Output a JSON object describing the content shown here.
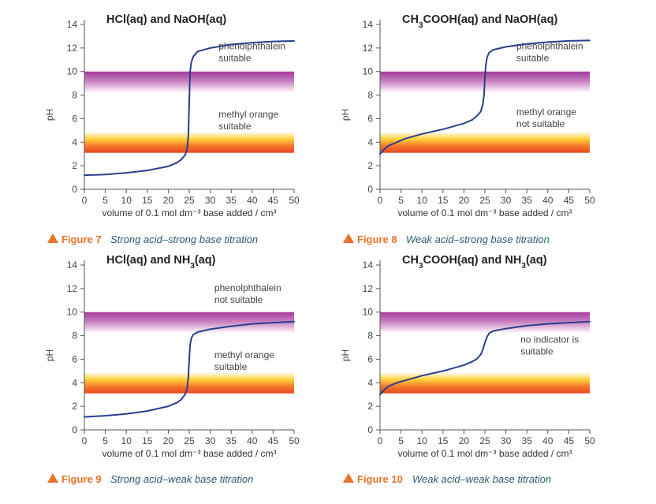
{
  "colors": {
    "curve": "#2b3f8c",
    "phenolphthalein_band": [
      "#a43b9c",
      "#ffffff"
    ],
    "methyl_orange_band": [
      "#ffffff",
      "#ffd23a",
      "#f5722a",
      "#e84a1f"
    ],
    "caption_figure": "#e8732a",
    "caption_text": "#2a5d6a"
  },
  "chart_data": [
    {
      "type": "line",
      "title": "HCl(aq) and NaOH(aq)",
      "title_parts": [
        {
          "t": "HCl(aq) and NaOH(aq)"
        }
      ],
      "xlabel": "volume of 0.1 mol dm⁻³ base added / cm³",
      "ylabel": "pH",
      "xlim": [
        0,
        50
      ],
      "ylim": [
        0,
        14
      ],
      "xticks": [
        0,
        5,
        10,
        15,
        20,
        25,
        30,
        35,
        40,
        45,
        50
      ],
      "yticks": [
        0,
        2,
        4,
        6,
        8,
        10,
        12,
        14
      ],
      "bands": [
        {
          "indicator": "phenolphthalein",
          "range": [
            8.2,
            10
          ]
        },
        {
          "indicator": "methyl orange",
          "range": [
            3.1,
            4.9
          ]
        }
      ],
      "annotations": [
        {
          "lines": [
            "phenolphthalein",
            "suitable"
          ],
          "x": 32,
          "y": 11.9
        },
        {
          "lines": [
            "methyl orange",
            "suitable"
          ],
          "x": 32,
          "y": 6.1
        }
      ],
      "series": [
        {
          "x": [
            0,
            5,
            10,
            15,
            20,
            22,
            23,
            24,
            24.5,
            24.8,
            25,
            25.2,
            25.5,
            26,
            27,
            30,
            35,
            40,
            45,
            50
          ],
          "y": [
            1.2,
            1.25,
            1.4,
            1.6,
            1.95,
            2.25,
            2.5,
            2.9,
            3.4,
            4.5,
            7.5,
            10.0,
            10.8,
            11.3,
            11.7,
            12.0,
            12.3,
            12.45,
            12.55,
            12.6
          ]
        }
      ],
      "caption": {
        "figure": "Figure 7",
        "text": "Strong acid–strong base titration"
      }
    },
    {
      "type": "line",
      "title": "CH3COOH(aq) and NaOH(aq)",
      "title_parts": [
        {
          "t": "CH"
        },
        {
          "t": "3",
          "sub": true
        },
        {
          "t": "COOH(aq) and NaOH(aq)"
        }
      ],
      "xlabel": "volume of 0.1 mol dm⁻³ base added / cm³",
      "ylabel": "pH",
      "xlim": [
        0,
        50
      ],
      "ylim": [
        0,
        14
      ],
      "xticks": [
        0,
        5,
        10,
        15,
        20,
        25,
        30,
        35,
        40,
        45,
        50
      ],
      "yticks": [
        0,
        2,
        4,
        6,
        8,
        10,
        12,
        14
      ],
      "bands": [
        {
          "indicator": "phenolphthalein",
          "range": [
            8.2,
            10
          ]
        },
        {
          "indicator": "methyl orange",
          "range": [
            3.1,
            4.9
          ]
        }
      ],
      "annotations": [
        {
          "lines": [
            "phenolphthalein",
            "suitable"
          ],
          "x": 32.5,
          "y": 11.9
        },
        {
          "lines": [
            "methyl orange",
            "not suitable"
          ],
          "x": 32.5,
          "y": 6.3
        }
      ],
      "series": [
        {
          "x": [
            0,
            1,
            2,
            4,
            6,
            10,
            15,
            20,
            22,
            23,
            24,
            24.5,
            24.8,
            25,
            25.2,
            25.5,
            26,
            27,
            30,
            35,
            40,
            45,
            50
          ],
          "y": [
            3.0,
            3.4,
            3.7,
            4.0,
            4.3,
            4.7,
            5.1,
            5.6,
            5.9,
            6.2,
            6.6,
            7.2,
            8.0,
            9.5,
            10.5,
            11.2,
            11.6,
            11.85,
            12.1,
            12.35,
            12.5,
            12.6,
            12.65
          ]
        }
      ],
      "caption": {
        "figure": "Figure 8",
        "text": "Weak acid–strong base titration"
      }
    },
    {
      "type": "line",
      "title": "HCl(aq) and NH3(aq)",
      "title_parts": [
        {
          "t": "HCl(aq) and NH"
        },
        {
          "t": "3",
          "sub": true
        },
        {
          "t": "(aq)"
        }
      ],
      "xlabel": "volume of 0.1 mol dm⁻³ base added / cm³",
      "ylabel": "pH",
      "xlim": [
        0,
        50
      ],
      "ylim": [
        0,
        14
      ],
      "xticks": [
        0,
        5,
        10,
        15,
        20,
        25,
        30,
        35,
        40,
        45,
        50
      ],
      "yticks": [
        0,
        2,
        4,
        6,
        8,
        10,
        12,
        14
      ],
      "bands": [
        {
          "indicator": "phenolphthalein",
          "range": [
            8.2,
            10
          ]
        },
        {
          "indicator": "methyl orange",
          "range": [
            3.1,
            4.9
          ]
        }
      ],
      "annotations": [
        {
          "lines": [
            "phenolphthalein",
            "not suitable"
          ],
          "x": 31,
          "y": 11.8
        },
        {
          "lines": [
            "methyl orange",
            "suitable"
          ],
          "x": 31,
          "y": 6.1
        }
      ],
      "series": [
        {
          "x": [
            0,
            5,
            10,
            15,
            20,
            22,
            23,
            24,
            24.5,
            24.8,
            25,
            25.2,
            25.5,
            26,
            27,
            30,
            35,
            40,
            45,
            50
          ],
          "y": [
            1.1,
            1.2,
            1.35,
            1.6,
            2.0,
            2.3,
            2.55,
            3.0,
            3.5,
            4.5,
            6.0,
            7.2,
            7.8,
            8.1,
            8.3,
            8.55,
            8.8,
            9.0,
            9.1,
            9.2
          ]
        }
      ],
      "caption": {
        "figure": "Figure 9",
        "text": "Strong acid–weak base titration"
      }
    },
    {
      "type": "line",
      "title": "CH3COOH(aq) and NH3(aq)",
      "title_parts": [
        {
          "t": "CH"
        },
        {
          "t": "3",
          "sub": true
        },
        {
          "t": "COOH(aq) and NH"
        },
        {
          "t": "3",
          "sub": true
        },
        {
          "t": "(aq)"
        }
      ],
      "xlabel": "volume of 0.1 mol dm⁻³ base added / cm³",
      "ylabel": "pH",
      "xlim": [
        0,
        50
      ],
      "ylim": [
        0,
        14
      ],
      "xticks": [
        0,
        5,
        10,
        15,
        20,
        25,
        30,
        35,
        40,
        45,
        50
      ],
      "yticks": [
        0,
        2,
        4,
        6,
        8,
        10,
        12,
        14
      ],
      "bands": [
        {
          "indicator": "phenolphthalein",
          "range": [
            8.2,
            10
          ]
        },
        {
          "indicator": "methyl orange",
          "range": [
            3.1,
            4.9
          ]
        }
      ],
      "annotations": [
        {
          "lines": [
            "no indicator is",
            "suitable"
          ],
          "x": 33.5,
          "y": 7.4
        }
      ],
      "series": [
        {
          "x": [
            0,
            1,
            2,
            4,
            6,
            10,
            15,
            20,
            22,
            23,
            24,
            24.5,
            25,
            25.5,
            26,
            27,
            30,
            35,
            40,
            45,
            50
          ],
          "y": [
            3.0,
            3.4,
            3.7,
            4.0,
            4.2,
            4.6,
            5.0,
            5.5,
            5.8,
            6.0,
            6.4,
            6.8,
            7.4,
            7.9,
            8.2,
            8.4,
            8.6,
            8.85,
            9.0,
            9.1,
            9.2
          ]
        }
      ],
      "caption": {
        "figure": "Figure 10",
        "text": "Weak acid–weak base titration"
      }
    }
  ]
}
